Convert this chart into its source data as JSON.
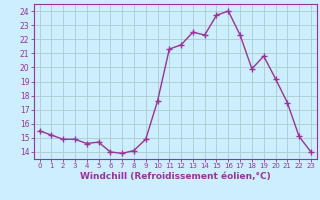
{
  "x": [
    0,
    1,
    2,
    3,
    4,
    5,
    6,
    7,
    8,
    9,
    10,
    11,
    12,
    13,
    14,
    15,
    16,
    17,
    18,
    19,
    20,
    21,
    22,
    23
  ],
  "y": [
    15.5,
    15.2,
    14.9,
    14.9,
    14.6,
    14.7,
    14.0,
    13.9,
    14.1,
    14.9,
    17.6,
    21.3,
    21.6,
    22.5,
    22.3,
    23.7,
    24.0,
    22.3,
    19.9,
    20.8,
    19.2,
    17.5,
    15.1,
    14.0
  ],
  "line_color": "#993399",
  "marker": "+",
  "markersize": 4,
  "linewidth": 1.0,
  "xlabel": "Windchill (Refroidissement éolien,°C)",
  "xlabel_fontsize": 6.5,
  "xtick_labels": [
    "0",
    "1",
    "2",
    "3",
    "4",
    "5",
    "6",
    "7",
    "8",
    "9",
    "10",
    "11",
    "12",
    "13",
    "14",
    "15",
    "16",
    "17",
    "18",
    "19",
    "20",
    "21",
    "22",
    "23"
  ],
  "ylim": [
    13.5,
    24.5
  ],
  "xlim": [
    -0.5,
    23.5
  ],
  "ytick_min": 14,
  "ytick_max": 24,
  "ytick_step": 1,
  "bg_color": "#cceeff",
  "grid_color": "#aacccc",
  "tick_color": "#993399",
  "label_color": "#993399",
  "spine_color": "#993399"
}
